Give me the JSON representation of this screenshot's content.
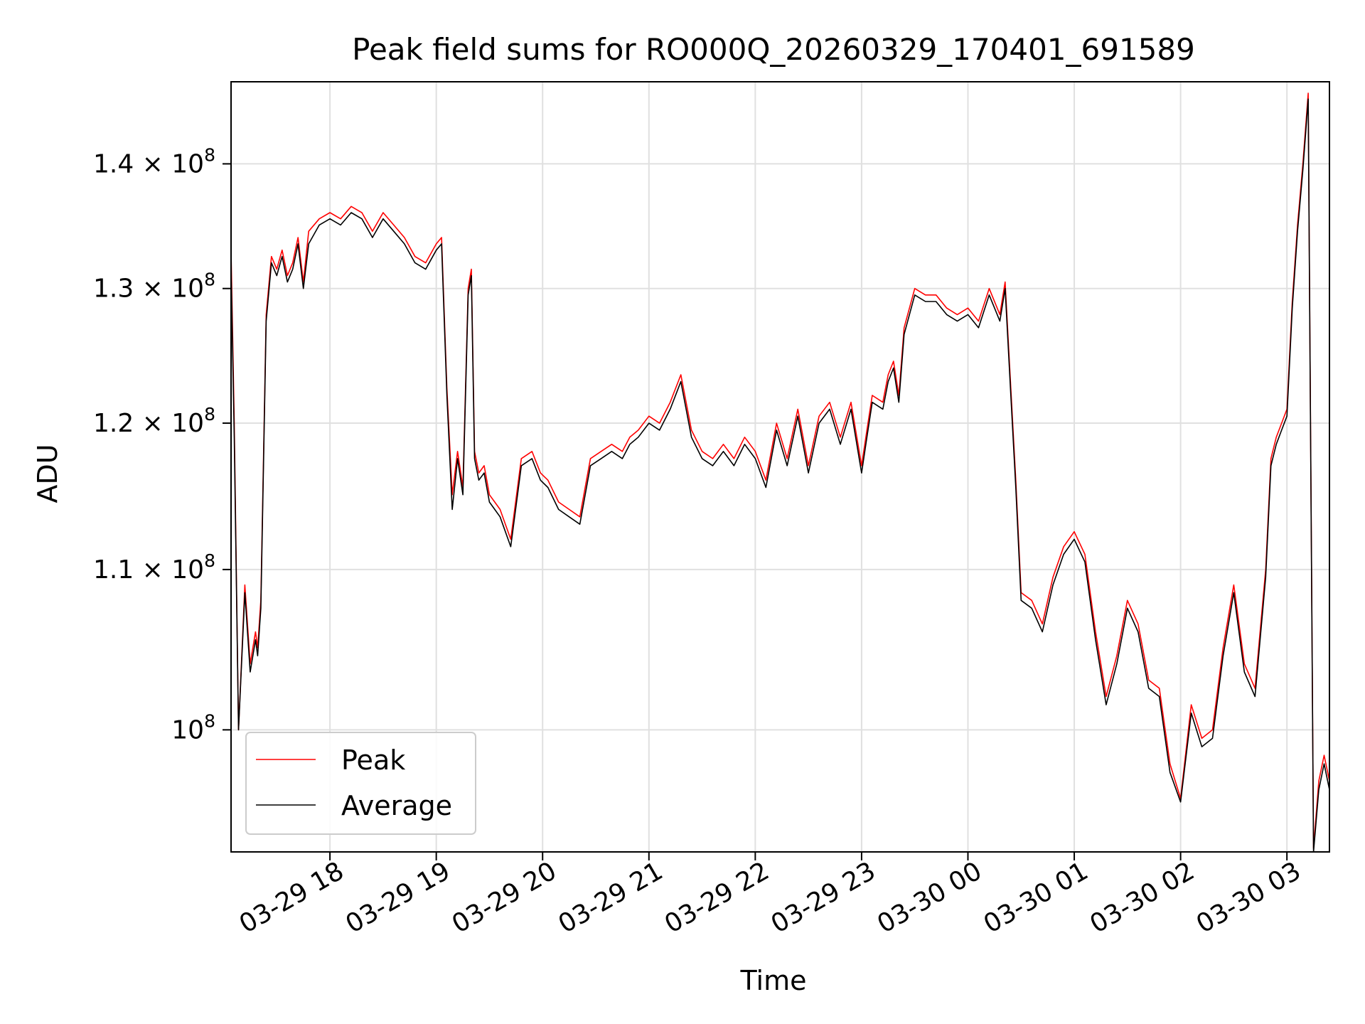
{
  "chart_data": {
    "type": "line",
    "title": "Peak field sums for RO000Q_20260329_170401_691589",
    "xlabel": "Time",
    "ylabel": "ADU",
    "yscale": "log",
    "ylim": [
      93000000,
      147000000
    ],
    "xlim_hours": [
      -0.93,
      9.4
    ],
    "grid": true,
    "legend_position": "lower-left",
    "x_ticks": [
      {
        "hour": 0,
        "label": "03-29 18"
      },
      {
        "hour": 1,
        "label": "03-29 19"
      },
      {
        "hour": 2,
        "label": "03-29 20"
      },
      {
        "hour": 3,
        "label": "03-29 21"
      },
      {
        "hour": 4,
        "label": "03-29 22"
      },
      {
        "hour": 5,
        "label": "03-29 23"
      },
      {
        "hour": 6,
        "label": "03-30 00"
      },
      {
        "hour": 7,
        "label": "03-30 01"
      },
      {
        "hour": 8,
        "label": "03-30 02"
      },
      {
        "hour": 9,
        "label": "03-30 03"
      }
    ],
    "y_ticks": [
      {
        "value": 100000000,
        "mantissa": "",
        "base": "10",
        "exp": "8"
      },
      {
        "value": 110000000,
        "mantissa": "1.1 × ",
        "base": "10",
        "exp": "8"
      },
      {
        "value": 120000000,
        "mantissa": "1.2 × ",
        "base": "10",
        "exp": "8"
      },
      {
        "value": 130000000,
        "mantissa": "1.3 × ",
        "base": "10",
        "exp": "8"
      },
      {
        "value": 140000000,
        "mantissa": "1.4 × ",
        "base": "10",
        "exp": "8"
      }
    ],
    "series": [
      {
        "name": "Peak",
        "color": "#ff0000",
        "x_hours": [
          -0.93,
          -0.9,
          -0.86,
          -0.8,
          -0.75,
          -0.7,
          -0.68,
          -0.65,
          -0.6,
          -0.55,
          -0.5,
          -0.45,
          -0.4,
          -0.35,
          -0.3,
          -0.25,
          -0.2,
          -0.1,
          0.0,
          0.1,
          0.2,
          0.3,
          0.4,
          0.5,
          0.6,
          0.7,
          0.8,
          0.9,
          1.0,
          1.05,
          1.1,
          1.15,
          1.2,
          1.25,
          1.3,
          1.33,
          1.36,
          1.4,
          1.45,
          1.5,
          1.55,
          1.6,
          1.7,
          1.8,
          1.9,
          1.98,
          2.05,
          2.15,
          2.25,
          2.35,
          2.45,
          2.55,
          2.65,
          2.75,
          2.82,
          2.9,
          3.0,
          3.1,
          3.2,
          3.3,
          3.4,
          3.5,
          3.6,
          3.7,
          3.8,
          3.9,
          4.0,
          4.1,
          4.2,
          4.3,
          4.4,
          4.5,
          4.6,
          4.7,
          4.8,
          4.9,
          5.0,
          5.05,
          5.1,
          5.2,
          5.25,
          5.3,
          5.35,
          5.4,
          5.5,
          5.6,
          5.7,
          5.8,
          5.9,
          6.0,
          6.1,
          6.2,
          6.3,
          6.35,
          6.4,
          6.45,
          6.5,
          6.6,
          6.7,
          6.8,
          6.9,
          7.0,
          7.1,
          7.2,
          7.3,
          7.4,
          7.5,
          7.6,
          7.7,
          7.8,
          7.9,
          8.0,
          8.1,
          8.2,
          8.3,
          8.4,
          8.5,
          8.6,
          8.7,
          8.8,
          8.85,
          8.9,
          8.95,
          9.0,
          9.05,
          9.1,
          9.15,
          9.2,
          9.25,
          9.3,
          9.35,
          9.4
        ],
        "values": [
          133000000,
          120000000,
          100000000,
          109000000,
          104000000,
          106000000,
          105000000,
          108000000,
          128000000,
          132500000,
          131500000,
          133000000,
          131000000,
          132000000,
          134000000,
          130500000,
          134500000,
          135500000,
          136000000,
          135500000,
          136500000,
          136000000,
          134500000,
          136000000,
          135000000,
          134000000,
          132500000,
          132000000,
          133500000,
          134000000,
          122500000,
          115000000,
          118000000,
          115500000,
          130000000,
          131500000,
          118000000,
          116500000,
          117000000,
          115000000,
          114500000,
          114000000,
          112000000,
          117500000,
          118000000,
          116500000,
          116000000,
          114500000,
          114000000,
          113500000,
          117500000,
          118000000,
          118500000,
          118000000,
          119000000,
          119500000,
          120500000,
          120000000,
          121500000,
          123500000,
          119500000,
          118000000,
          117500000,
          118500000,
          117500000,
          119000000,
          118000000,
          116000000,
          120000000,
          117500000,
          121000000,
          117000000,
          120500000,
          121500000,
          119000000,
          121500000,
          117000000,
          119500000,
          122000000,
          121500000,
          123500000,
          124500000,
          122000000,
          127000000,
          130000000,
          129500000,
          129500000,
          128500000,
          128000000,
          128500000,
          127500000,
          130000000,
          128000000,
          130500000,
          123000000,
          116000000,
          108500000,
          108000000,
          106500000,
          109500000,
          111500000,
          112500000,
          111000000,
          106000000,
          102000000,
          104500000,
          108000000,
          106500000,
          103000000,
          102500000,
          98000000,
          96000000,
          101500000,
          99500000,
          100000000,
          105000000,
          109000000,
          104000000,
          102500000,
          110000000,
          117500000,
          119000000,
          120000000,
          121000000,
          129000000,
          135000000,
          140000000,
          146000000,
          93200000,
          97000000,
          98500000,
          97000000
        ]
      },
      {
        "name": "Average",
        "color": "#000000",
        "x_hours": [
          -0.93,
          -0.9,
          -0.86,
          -0.8,
          -0.75,
          -0.7,
          -0.68,
          -0.65,
          -0.6,
          -0.55,
          -0.5,
          -0.45,
          -0.4,
          -0.35,
          -0.3,
          -0.25,
          -0.2,
          -0.1,
          0.0,
          0.1,
          0.2,
          0.3,
          0.4,
          0.5,
          0.6,
          0.7,
          0.8,
          0.9,
          1.0,
          1.05,
          1.1,
          1.15,
          1.2,
          1.25,
          1.3,
          1.33,
          1.36,
          1.4,
          1.45,
          1.5,
          1.55,
          1.6,
          1.7,
          1.8,
          1.9,
          1.98,
          2.05,
          2.15,
          2.25,
          2.35,
          2.45,
          2.55,
          2.65,
          2.75,
          2.82,
          2.9,
          3.0,
          3.1,
          3.2,
          3.3,
          3.4,
          3.5,
          3.6,
          3.7,
          3.8,
          3.9,
          4.0,
          4.1,
          4.2,
          4.3,
          4.4,
          4.5,
          4.6,
          4.7,
          4.8,
          4.9,
          5.0,
          5.05,
          5.1,
          5.2,
          5.25,
          5.3,
          5.35,
          5.4,
          5.5,
          5.6,
          5.7,
          5.8,
          5.9,
          6.0,
          6.1,
          6.2,
          6.3,
          6.35,
          6.4,
          6.45,
          6.5,
          6.6,
          6.7,
          6.8,
          6.9,
          7.0,
          7.1,
          7.2,
          7.3,
          7.4,
          7.5,
          7.6,
          7.7,
          7.8,
          7.9,
          8.0,
          8.1,
          8.2,
          8.3,
          8.4,
          8.5,
          8.6,
          8.7,
          8.8,
          8.85,
          8.9,
          8.95,
          9.0,
          9.05,
          9.1,
          9.15,
          9.2,
          9.25,
          9.3,
          9.35,
          9.4
        ],
        "values": [
          131500000,
          119000000,
          100000000,
          108500000,
          103500000,
          105500000,
          104500000,
          107500000,
          127500000,
          132000000,
          131000000,
          132500000,
          130500000,
          131500000,
          133500000,
          130000000,
          133500000,
          135000000,
          135500000,
          135000000,
          136000000,
          135500000,
          134000000,
          135500000,
          134500000,
          133500000,
          132000000,
          131500000,
          133000000,
          133500000,
          122000000,
          114000000,
          117500000,
          115000000,
          129500000,
          131000000,
          117500000,
          116000000,
          116500000,
          114500000,
          114000000,
          113500000,
          111500000,
          117000000,
          117500000,
          116000000,
          115500000,
          114000000,
          113500000,
          113000000,
          117000000,
          117500000,
          118000000,
          117500000,
          118500000,
          119000000,
          120000000,
          119500000,
          121000000,
          123000000,
          119000000,
          117500000,
          117000000,
          118000000,
          117000000,
          118500000,
          117500000,
          115500000,
          119500000,
          117000000,
          120500000,
          116500000,
          120000000,
          121000000,
          118500000,
          121000000,
          116500000,
          119000000,
          121500000,
          121000000,
          123000000,
          124000000,
          121500000,
          126500000,
          129500000,
          129000000,
          129000000,
          128000000,
          127500000,
          128000000,
          127000000,
          129500000,
          127500000,
          130000000,
          122500000,
          115500000,
          108000000,
          107500000,
          106000000,
          109000000,
          111000000,
          112000000,
          110500000,
          105500000,
          101500000,
          104000000,
          107500000,
          106000000,
          102500000,
          102000000,
          97500000,
          95800000,
          101000000,
          99000000,
          99500000,
          104500000,
          108500000,
          103500000,
          102000000,
          109500000,
          117000000,
          118500000,
          119500000,
          120500000,
          128500000,
          134500000,
          139500000,
          145500000,
          93000000,
          96500000,
          98000000,
          96500000
        ]
      }
    ]
  }
}
